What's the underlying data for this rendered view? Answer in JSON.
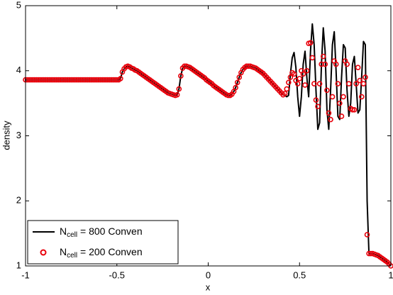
{
  "chart_data": {
    "type": "line",
    "xlabel": "x",
    "ylabel": "density",
    "x": [
      -1,
      -0.99,
      -0.98,
      -0.97,
      -0.96,
      -0.95,
      -0.94,
      -0.93,
      -0.92,
      -0.91,
      -0.9,
      -0.89,
      -0.88,
      -0.87,
      -0.86,
      -0.85,
      -0.84,
      -0.83,
      -0.82,
      -0.81,
      -0.8,
      -0.79,
      -0.78,
      -0.77,
      -0.76,
      -0.75,
      -0.74,
      -0.73,
      -0.72,
      -0.71,
      -0.7,
      -0.69,
      -0.68,
      -0.67,
      -0.66,
      -0.65,
      -0.64,
      -0.63,
      -0.62,
      -0.61,
      -0.6,
      -0.59,
      -0.58,
      -0.57,
      -0.56,
      -0.55,
      -0.54,
      -0.53,
      -0.52,
      -0.51,
      -0.5,
      -0.49,
      -0.48,
      -0.47,
      -0.46,
      -0.45,
      -0.44,
      -0.43,
      -0.42,
      -0.41,
      -0.4,
      -0.39,
      -0.38,
      -0.37,
      -0.36,
      -0.35,
      -0.34,
      -0.33,
      -0.32,
      -0.31,
      -0.3,
      -0.29,
      -0.28,
      -0.27,
      -0.26,
      -0.25,
      -0.24,
      -0.23,
      -0.22,
      -0.21,
      -0.2,
      -0.19,
      -0.18,
      -0.17,
      -0.16,
      -0.15,
      -0.14,
      -0.13,
      -0.12,
      -0.11,
      -0.1,
      -0.09,
      -0.08,
      -0.07,
      -0.06,
      -0.05,
      -0.04,
      -0.03,
      -0.02,
      -0.01,
      0,
      0.01,
      0.02,
      0.03,
      0.04,
      0.05,
      0.06,
      0.07,
      0.08,
      0.09,
      0.1,
      0.11,
      0.12,
      0.13,
      0.14,
      0.15,
      0.16,
      0.17,
      0.18,
      0.19,
      0.2,
      0.21,
      0.22,
      0.23,
      0.24,
      0.25,
      0.26,
      0.27,
      0.28,
      0.29,
      0.3,
      0.31,
      0.32,
      0.33,
      0.34,
      0.35,
      0.36,
      0.37,
      0.38,
      0.39,
      0.4,
      0.41,
      0.42,
      0.43,
      0.44,
      0.45,
      0.46,
      0.47,
      0.48,
      0.49,
      0.5,
      0.51,
      0.52,
      0.53,
      0.54,
      0.55,
      0.56,
      0.57,
      0.58,
      0.59,
      0.6,
      0.61,
      0.62,
      0.63,
      0.64,
      0.65,
      0.66,
      0.67,
      0.68,
      0.69,
      0.7,
      0.71,
      0.72,
      0.73,
      0.74,
      0.75,
      0.76,
      0.77,
      0.78,
      0.79,
      0.8,
      0.81,
      0.82,
      0.83,
      0.84,
      0.85,
      0.86,
      0.87,
      0.88,
      0.89,
      0.9,
      0.91,
      0.92,
      0.93,
      0.94,
      0.95,
      0.96,
      0.97,
      0.98,
      0.99,
      1
    ],
    "series": [
      {
        "name": "Ncell = 800 Conven",
        "color": "#000000",
        "style": "line",
        "values": [
          3.86,
          3.86,
          3.86,
          3.86,
          3.86,
          3.86,
          3.86,
          3.86,
          3.86,
          3.86,
          3.86,
          3.86,
          3.86,
          3.86,
          3.86,
          3.86,
          3.86,
          3.86,
          3.86,
          3.86,
          3.86,
          3.86,
          3.86,
          3.86,
          3.86,
          3.86,
          3.86,
          3.86,
          3.86,
          3.86,
          3.86,
          3.86,
          3.86,
          3.86,
          3.86,
          3.86,
          3.86,
          3.86,
          3.86,
          3.86,
          3.86,
          3.86,
          3.86,
          3.86,
          3.86,
          3.86,
          3.86,
          3.86,
          3.86,
          3.86,
          3.86,
          3.86,
          3.88,
          3.98,
          4.03,
          4.06,
          4.07,
          4.06,
          4.04,
          4.03,
          4.01,
          4.0,
          3.98,
          3.96,
          3.94,
          3.92,
          3.9,
          3.88,
          3.86,
          3.84,
          3.82,
          3.8,
          3.78,
          3.76,
          3.74,
          3.72,
          3.7,
          3.68,
          3.66,
          3.65,
          3.64,
          3.63,
          3.62,
          3.63,
          3.72,
          3.92,
          4.04,
          4.07,
          4.07,
          4.06,
          4.05,
          4.03,
          4.01,
          3.99,
          3.97,
          3.95,
          3.93,
          3.91,
          3.89,
          3.86,
          3.84,
          3.82,
          3.8,
          3.77,
          3.75,
          3.73,
          3.71,
          3.69,
          3.67,
          3.65,
          3.63,
          3.62,
          3.62,
          3.64,
          3.68,
          3.74,
          3.82,
          3.9,
          3.97,
          4.02,
          4.05,
          4.07,
          4.07,
          4.07,
          4.06,
          4.05,
          4.04,
          4.02,
          4.0,
          3.98,
          3.96,
          3.93,
          3.9,
          3.87,
          3.84,
          3.81,
          3.78,
          3.75,
          3.72,
          3.69,
          3.66,
          3.63,
          3.62,
          3.6,
          3.62,
          3.95,
          4.2,
          4.28,
          4.05,
          3.6,
          3.3,
          3.6,
          4.1,
          4.3,
          3.9,
          3.6,
          4.3,
          4.72,
          4.4,
          3.7,
          3.1,
          3.2,
          4.1,
          4.66,
          4.3,
          3.4,
          3.1,
          3.7,
          4.4,
          4.6,
          4.0,
          3.3,
          3.25,
          3.9,
          4.4,
          4.35,
          3.7,
          3.3,
          3.5,
          4.1,
          4.22,
          3.8,
          3.35,
          3.4,
          3.9,
          4.45,
          4.4,
          2.0,
          1.19,
          1.19,
          1.19,
          1.18,
          1.17,
          1.16,
          1.14,
          1.12,
          1.1,
          1.08,
          1.06,
          1.03,
          1.0
        ]
      },
      {
        "name": "Ncell = 200 Conven",
        "color": "#e8000b",
        "style": "circle",
        "values": [
          3.86,
          3.86,
          3.86,
          3.86,
          3.86,
          3.86,
          3.86,
          3.86,
          3.86,
          3.86,
          3.86,
          3.86,
          3.86,
          3.86,
          3.86,
          3.86,
          3.86,
          3.86,
          3.86,
          3.86,
          3.86,
          3.86,
          3.86,
          3.86,
          3.86,
          3.86,
          3.86,
          3.86,
          3.86,
          3.86,
          3.86,
          3.86,
          3.86,
          3.86,
          3.86,
          3.86,
          3.86,
          3.86,
          3.86,
          3.86,
          3.86,
          3.86,
          3.86,
          3.86,
          3.86,
          3.86,
          3.86,
          3.86,
          3.86,
          3.86,
          3.86,
          3.86,
          3.88,
          3.98,
          4.03,
          4.06,
          4.07,
          4.06,
          4.04,
          4.03,
          4.01,
          4.0,
          3.98,
          3.96,
          3.94,
          3.92,
          3.9,
          3.88,
          3.86,
          3.84,
          3.82,
          3.8,
          3.78,
          3.76,
          3.74,
          3.72,
          3.7,
          3.68,
          3.66,
          3.65,
          3.64,
          3.63,
          3.62,
          3.63,
          3.72,
          3.92,
          4.04,
          4.07,
          4.07,
          4.06,
          4.05,
          4.03,
          4.01,
          3.99,
          3.97,
          3.95,
          3.93,
          3.91,
          3.89,
          3.86,
          3.84,
          3.82,
          3.8,
          3.77,
          3.75,
          3.73,
          3.71,
          3.69,
          3.67,
          3.65,
          3.63,
          3.62,
          3.62,
          3.64,
          3.68,
          3.74,
          3.82,
          3.9,
          3.97,
          4.02,
          4.05,
          4.07,
          4.07,
          4.07,
          4.06,
          4.05,
          4.04,
          4.02,
          4.0,
          3.98,
          3.96,
          3.93,
          3.9,
          3.87,
          3.84,
          3.81,
          3.78,
          3.75,
          3.72,
          3.69,
          3.66,
          3.63,
          3.65,
          3.72,
          3.82,
          3.9,
          3.97,
          3.95,
          3.85,
          3.8,
          3.88,
          4.0,
          3.95,
          3.78,
          4.0,
          4.42,
          4.43,
          4.2,
          3.8,
          3.55,
          3.45,
          3.8,
          4.1,
          4.22,
          4.1,
          3.7,
          3.35,
          3.25,
          3.6,
          4.15,
          4.1,
          3.8,
          3.5,
          3.3,
          3.6,
          4.15,
          4.1,
          3.8,
          3.42,
          3.4,
          3.4,
          3.8,
          4.05,
          3.85,
          3.6,
          3.8,
          3.9,
          1.48,
          1.19,
          1.19,
          1.19,
          1.18,
          1.17,
          1.16,
          1.14,
          1.12,
          1.1,
          1.08,
          1.06,
          1.03,
          1.0
        ]
      }
    ],
    "xlim": [
      -1,
      1
    ],
    "xticks": [
      -1,
      -0.5,
      0,
      0.5,
      1
    ],
    "ylim": [
      1,
      5
    ],
    "yticks": [
      1,
      2,
      3,
      4,
      5
    ],
    "grid": false,
    "legend": "lower left"
  }
}
